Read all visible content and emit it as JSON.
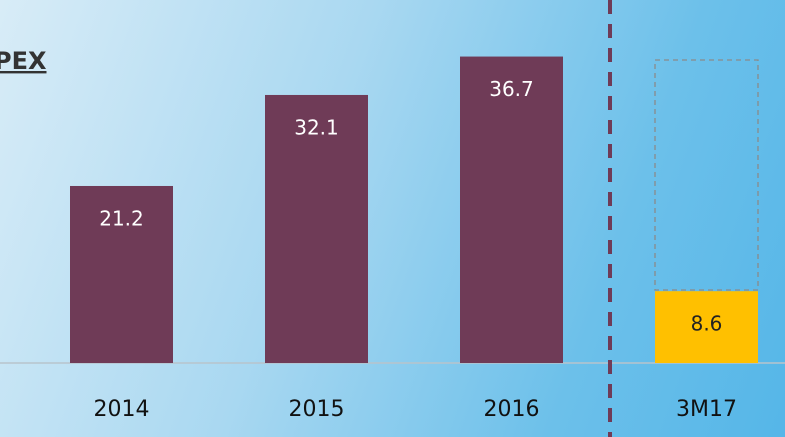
{
  "chart_data": {
    "type": "bar",
    "title": "PEX",
    "categories": [
      "2014",
      "2015",
      "2016",
      "3M17"
    ],
    "values": [
      21.2,
      32.1,
      36.7,
      8.6
    ],
    "colors": [
      "#6f3b57",
      "#6f3b57",
      "#6f3b57",
      "#ffc000"
    ]
  }
}
